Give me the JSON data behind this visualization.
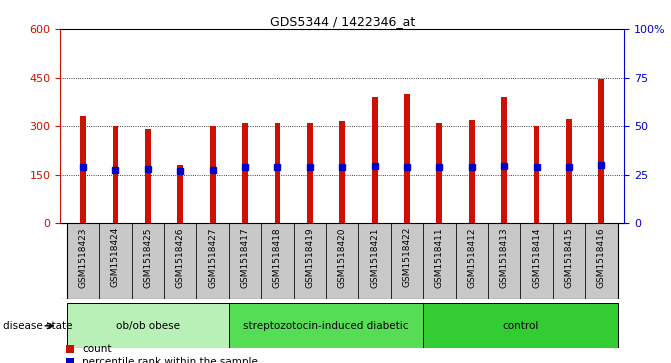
{
  "title": "GDS5344 / 1422346_at",
  "samples": [
    "GSM1518423",
    "GSM1518424",
    "GSM1518425",
    "GSM1518426",
    "GSM1518427",
    "GSM1518417",
    "GSM1518418",
    "GSM1518419",
    "GSM1518420",
    "GSM1518421",
    "GSM1518422",
    "GSM1518411",
    "GSM1518412",
    "GSM1518413",
    "GSM1518414",
    "GSM1518415",
    "GSM1518416"
  ],
  "counts": [
    330,
    300,
    292,
    180,
    300,
    310,
    310,
    310,
    315,
    390,
    400,
    310,
    318,
    390,
    300,
    322,
    445
  ],
  "percentile_vals": [
    175,
    165,
    167,
    160,
    166,
    174,
    174,
    174,
    174,
    178,
    174,
    174,
    174,
    178,
    174,
    174,
    180
  ],
  "groups": [
    {
      "label": "ob/ob obese",
      "start": 0,
      "end": 5
    },
    {
      "label": "streptozotocin-induced diabetic",
      "start": 5,
      "end": 11
    },
    {
      "label": "control",
      "start": 11,
      "end": 17
    }
  ],
  "group_colors": [
    "#b8f0b8",
    "#55dd55",
    "#33cc33"
  ],
  "bar_color": "#cc1100",
  "blue_color": "#0000cc",
  "left_ylim": [
    0,
    600
  ],
  "left_yticks": [
    0,
    150,
    300,
    450,
    600
  ],
  "right_yticks": [
    0,
    25,
    50,
    75,
    100
  ],
  "right_yticklabels": [
    "0",
    "25",
    "50",
    "75",
    "100%"
  ],
  "grid_values": [
    150,
    300,
    450
  ],
  "gray_bg": "#c8c8c8",
  "group_boundary_cols": [
    5,
    11
  ]
}
